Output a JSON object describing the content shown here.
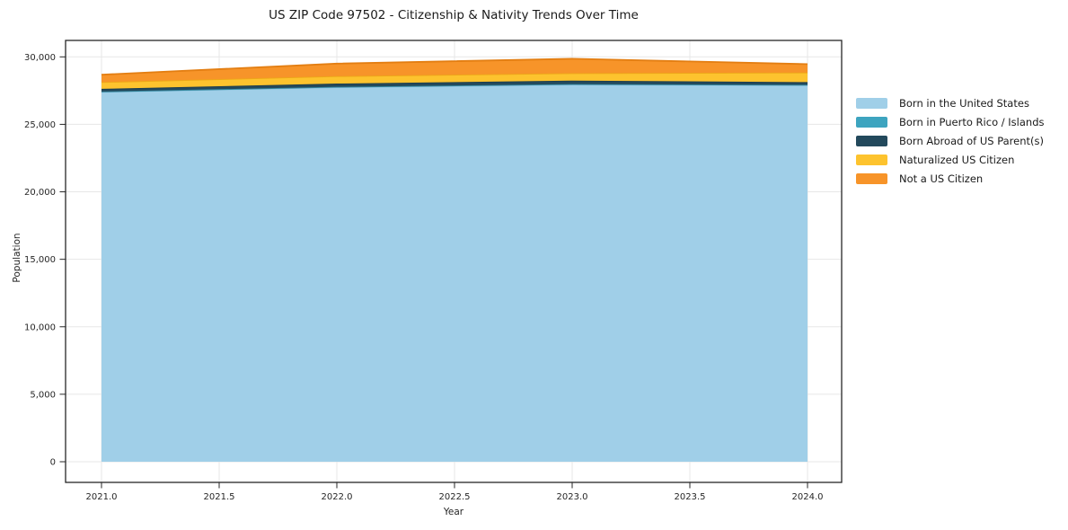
{
  "title": "US ZIP Code 97502 - Citizenship & Nativity Trends Over Time",
  "axes": {
    "x_label": "Year",
    "y_label": "Population",
    "x_ticks": [
      "2021.0",
      "2021.5",
      "2022.0",
      "2022.5",
      "2023.0",
      "2023.5",
      "2024.0"
    ],
    "y_ticks": [
      "0",
      "5,000",
      "10,000",
      "15,000",
      "20,000",
      "25,000",
      "30,000"
    ]
  },
  "chart_data": {
    "type": "area",
    "stacked": true,
    "title": "US ZIP Code 97502 - Citizenship & Nativity Trends Over Time",
    "xlabel": "Year",
    "ylabel": "Population",
    "x": [
      2021,
      2022,
      2023,
      2024
    ],
    "x_tick_values": [
      2021.0,
      2021.5,
      2022.0,
      2022.5,
      2023.0,
      2023.5,
      2024.0
    ],
    "y_tick_values": [
      0,
      5000,
      10000,
      15000,
      20000,
      25000,
      30000
    ],
    "xlim": [
      2020.85,
      2024.15
    ],
    "ylim": [
      0,
      30000
    ],
    "grid": true,
    "legend_position": "right",
    "series": [
      {
        "name": "Born in the United States",
        "color": "#A0CFE8",
        "edge": "#86BEDC",
        "values": [
          27400,
          27750,
          27950,
          27900
        ]
      },
      {
        "name": "Born in Puerto Rico / Islands",
        "color": "#3DA4BF",
        "edge": "#35899F",
        "values": [
          30,
          30,
          30,
          30
        ]
      },
      {
        "name": "Born Abroad of US Parent(s)",
        "color": "#23495C",
        "edge": "#1D3D4D",
        "values": [
          200,
          240,
          260,
          200
        ]
      },
      {
        "name": "Naturalized US Citizen",
        "color": "#FDC32E",
        "edge": "#EDA718",
        "values": [
          500,
          550,
          550,
          710
        ]
      },
      {
        "name": "Not a US Citizen",
        "color": "#F79429",
        "edge": "#E37E12",
        "values": [
          550,
          930,
          1070,
          620
        ]
      }
    ]
  },
  "colors": {
    "grid": "#e7e7e7",
    "frame": "#262626",
    "tick": "#262626",
    "tick_text": "#262626",
    "background": "#ffffff"
  }
}
